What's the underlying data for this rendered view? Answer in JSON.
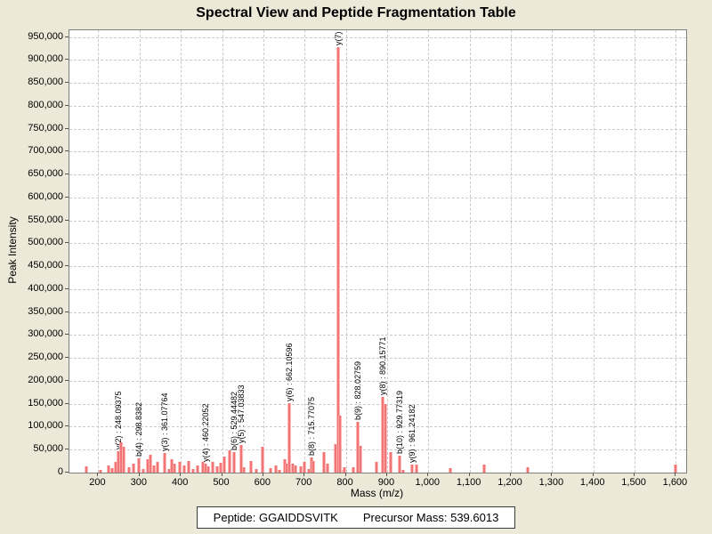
{
  "title": "Spectral View and Peptide Fragmentation Table",
  "footer": {
    "peptide_label": "Peptide: GGAIDDSVITK",
    "precursor_label": "Precursor Mass: 539.6013"
  },
  "colors": {
    "background": "#ECE9D8",
    "plot_background": "#FFFFFF",
    "gridline": "#CACACA",
    "peak": "#F07676",
    "plot_border": "#7F7F7F"
  },
  "chart_data": {
    "type": "bar",
    "title": "Spectral View and Peptide Fragmentation Table",
    "xlabel": "Mass (m/z)",
    "ylabel": "Peak Intensity",
    "xlim": [
      130,
      1625
    ],
    "ylim": [
      0,
      965000
    ],
    "x_ticks": [
      200,
      300,
      400,
      500,
      600,
      700,
      800,
      900,
      1000,
      1100,
      1200,
      1300,
      1400,
      1500,
      1600
    ],
    "y_ticks": [
      0,
      50000,
      100000,
      150000,
      200000,
      250000,
      300000,
      350000,
      400000,
      450000,
      500000,
      550000,
      600000,
      650000,
      700000,
      750000,
      800000,
      850000,
      900000,
      950000
    ],
    "grid": "dashed",
    "legend": "none",
    "annotation_format": "ion : m/z, rotated 90deg above peak",
    "peaks": [
      {
        "mz": 172,
        "intensity": 13000,
        "label": null
      },
      {
        "mz": 205,
        "intensity": 6000,
        "label": null
      },
      {
        "mz": 224,
        "intensity": 15000,
        "label": null
      },
      {
        "mz": 234,
        "intensity": 10000,
        "label": null
      },
      {
        "mz": 243,
        "intensity": 23000,
        "label": null
      },
      {
        "mz": 248.09375,
        "intensity": 47000,
        "label": "y(2) : 248.09375"
      },
      {
        "mz": 256,
        "intensity": 66000,
        "label": null
      },
      {
        "mz": 262,
        "intensity": 56000,
        "label": null
      },
      {
        "mz": 275,
        "intensity": 12000,
        "label": null
      },
      {
        "mz": 286,
        "intensity": 19000,
        "label": null
      },
      {
        "mz": 298.8382,
        "intensity": 31000,
        "label": "b(4) : 298.8382"
      },
      {
        "mz": 309,
        "intensity": 8000,
        "label": null
      },
      {
        "mz": 320,
        "intensity": 29000,
        "label": null
      },
      {
        "mz": 327,
        "intensity": 39000,
        "label": null
      },
      {
        "mz": 335,
        "intensity": 15000,
        "label": null
      },
      {
        "mz": 344,
        "intensity": 23000,
        "label": null
      },
      {
        "mz": 361.07764,
        "intensity": 43000,
        "label": "y(3) : 361.07764"
      },
      {
        "mz": 371,
        "intensity": 8000,
        "label": null
      },
      {
        "mz": 378,
        "intensity": 29000,
        "label": null
      },
      {
        "mz": 384,
        "intensity": 19000,
        "label": null
      },
      {
        "mz": 397,
        "intensity": 23000,
        "label": null
      },
      {
        "mz": 408,
        "intensity": 15000,
        "label": null
      },
      {
        "mz": 419,
        "intensity": 25000,
        "label": null
      },
      {
        "mz": 430,
        "intensity": 7000,
        "label": null
      },
      {
        "mz": 441,
        "intensity": 15000,
        "label": null
      },
      {
        "mz": 454,
        "intensity": 23000,
        "label": null
      },
      {
        "mz": 460.22052,
        "intensity": 20000,
        "label": "y(4) : 460.22052"
      },
      {
        "mz": 466,
        "intensity": 14000,
        "label": null
      },
      {
        "mz": 477,
        "intensity": 23000,
        "label": null
      },
      {
        "mz": 488,
        "intensity": 14000,
        "label": null
      },
      {
        "mz": 497,
        "intensity": 21000,
        "label": null
      },
      {
        "mz": 505,
        "intensity": 35000,
        "label": null
      },
      {
        "mz": 518,
        "intensity": 48000,
        "label": null
      },
      {
        "mz": 529.44482,
        "intensity": 45000,
        "label": "b(6) : 529.44482"
      },
      {
        "mz": 547.03833,
        "intensity": 60000,
        "label": "y(5) : 547.03833"
      },
      {
        "mz": 553,
        "intensity": 12000,
        "label": null
      },
      {
        "mz": 570,
        "intensity": 25000,
        "label": null
      },
      {
        "mz": 583,
        "intensity": 7000,
        "label": null
      },
      {
        "mz": 598,
        "intensity": 56000,
        "label": null
      },
      {
        "mz": 617,
        "intensity": 10000,
        "label": null
      },
      {
        "mz": 630,
        "intensity": 15000,
        "label": null
      },
      {
        "mz": 640,
        "intensity": 6000,
        "label": null
      },
      {
        "mz": 651,
        "intensity": 29000,
        "label": null
      },
      {
        "mz": 656,
        "intensity": 19000,
        "label": null
      },
      {
        "mz": 662.10596,
        "intensity": 152000,
        "label": "y(6) : 662.10596"
      },
      {
        "mz": 672,
        "intensity": 19000,
        "label": null
      },
      {
        "mz": 678,
        "intensity": 15000,
        "label": null
      },
      {
        "mz": 690,
        "intensity": 13000,
        "label": null
      },
      {
        "mz": 700,
        "intensity": 23000,
        "label": null
      },
      {
        "mz": 710,
        "intensity": 8000,
        "label": null
      },
      {
        "mz": 715.77075,
        "intensity": 33000,
        "label": "b(8) : 715.77075"
      },
      {
        "mz": 722,
        "intensity": 25000,
        "label": null
      },
      {
        "mz": 746,
        "intensity": 44000,
        "label": null
      },
      {
        "mz": 755,
        "intensity": 19000,
        "label": null
      },
      {
        "mz": 774,
        "intensity": 62000,
        "label": null
      },
      {
        "mz": 780.5,
        "intensity": 928000,
        "label": "y(7) :"
      },
      {
        "mz": 786,
        "intensity": 125000,
        "label": null
      },
      {
        "mz": 794,
        "intensity": 6000,
        "label": null
      },
      {
        "mz": 797,
        "intensity": 12000,
        "label": null
      },
      {
        "mz": 819,
        "intensity": 11000,
        "label": null
      },
      {
        "mz": 828.02759,
        "intensity": 111000,
        "label": "b(9) : 828.02759"
      },
      {
        "mz": 836,
        "intensity": 58000,
        "label": null
      },
      {
        "mz": 875,
        "intensity": 23000,
        "label": null
      },
      {
        "mz": 890.15771,
        "intensity": 165000,
        "label": "y(8) : 890.15771"
      },
      {
        "mz": 896,
        "intensity": 150000,
        "label": null
      },
      {
        "mz": 908,
        "intensity": 44000,
        "label": null
      },
      {
        "mz": 929.77319,
        "intensity": 37000,
        "label": "b(10) : 929.77319"
      },
      {
        "mz": 940,
        "intensity": 6000,
        "label": null
      },
      {
        "mz": 961.24182,
        "intensity": 18000,
        "label": "y(9) : 961.24182"
      },
      {
        "mz": 972,
        "intensity": 17000,
        "label": null
      },
      {
        "mz": 1054,
        "intensity": 9000,
        "label": null
      },
      {
        "mz": 1135,
        "intensity": 17000,
        "label": null
      },
      {
        "mz": 1240,
        "intensity": 12000,
        "label": null
      },
      {
        "mz": 1600,
        "intensity": 17000,
        "label": null
      }
    ]
  }
}
